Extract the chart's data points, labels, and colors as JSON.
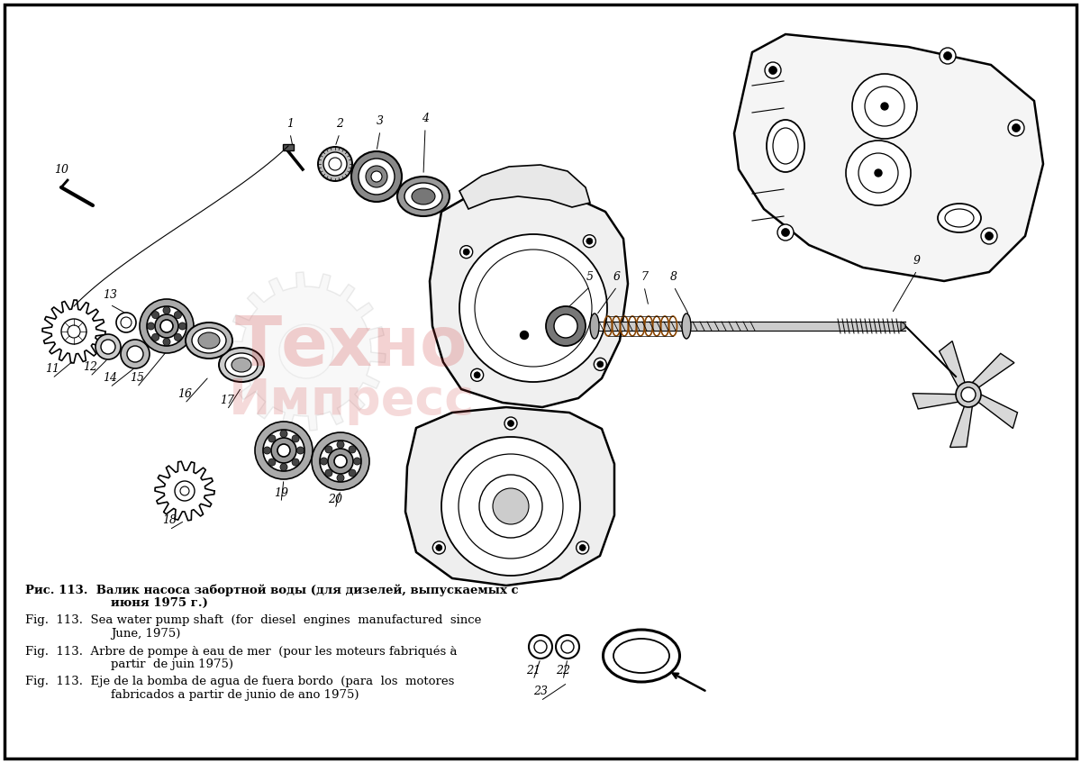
{
  "bg_color": "#ffffff",
  "border_color": "#000000",
  "fig_width": 12.0,
  "fig_height": 8.47,
  "watermark_text1": "Техно",
  "watermark_text2": "Импресс",
  "caption_ru_1": "Рис. 113.  Валик насоса забортной воды (для дизелей, выпускаемых с",
  "caption_ru_2": "июня 1975 г.)",
  "caption_en_1": "Fig.  113.  Sea water pump shaft  (for  diesel  engines  manufactured  since",
  "caption_en_2": "June, 1975)",
  "caption_fr_1": "Fig.  113.  Arbre de pompe à eau de mer  (pour les moteurs fabriqués à",
  "caption_fr_2": "partir  de juin 1975)",
  "caption_es_1": "Fig.  113.  Eje de la bomba de agua de fuera bordo  (para  los  motores",
  "caption_es_2": "fabricados a partir de junio de ano 1975)",
  "label_fontsize": 9,
  "caption_fontsize": 9.5
}
